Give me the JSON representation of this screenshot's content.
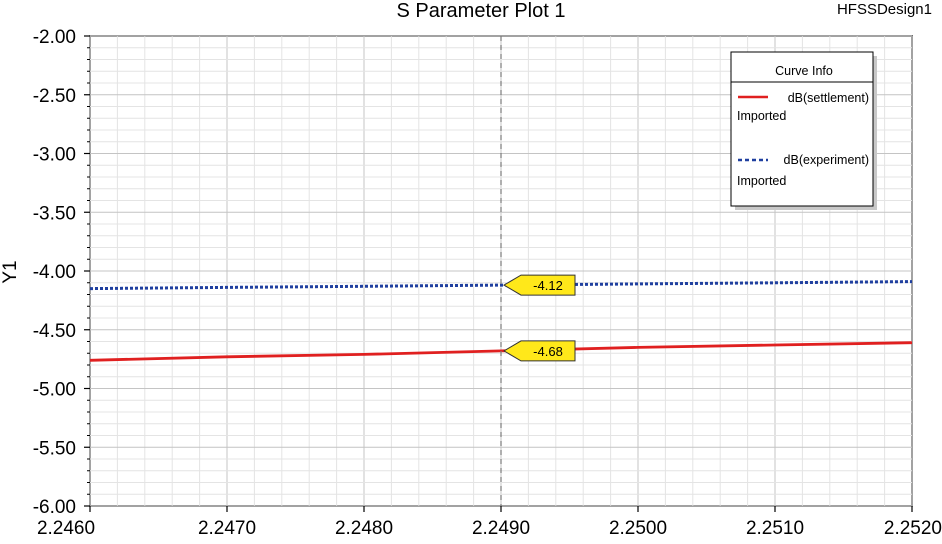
{
  "chart_data": {
    "type": "line",
    "title": "S Parameter Plot 1",
    "design_name": "HFSSDesign1",
    "ylabel": "Y1",
    "xlabel": "",
    "xlim": [
      2.246,
      2.252
    ],
    "ylim": [
      -6.0,
      -2.0
    ],
    "x_ticks": [
      "2.2460",
      "2.2470",
      "2.2480",
      "2.2490",
      "2.2500",
      "2.2510",
      "2.2520"
    ],
    "y_ticks": [
      "-2.00",
      "-2.50",
      "-3.00",
      "-3.50",
      "-4.00",
      "-4.50",
      "-5.00",
      "-5.50",
      "-6.00"
    ],
    "grid": true,
    "legend": {
      "title": "Curve Info",
      "placement": "top-right",
      "entries": [
        {
          "name": "dB(settlement)",
          "sub": "Imported",
          "style": "solid",
          "color": "#e02020"
        },
        {
          "name": "dB(experiment)",
          "sub": "Imported",
          "style": "dotted",
          "color": "#1f3f9f"
        }
      ]
    },
    "series": [
      {
        "name": "dB(settlement)",
        "color": "#e02020",
        "style": "solid",
        "x": [
          2.246,
          2.247,
          2.248,
          2.249,
          2.25,
          2.251,
          2.252
        ],
        "y": [
          -4.76,
          -4.73,
          -4.71,
          -4.68,
          -4.65,
          -4.63,
          -4.61
        ]
      },
      {
        "name": "dB(experiment)",
        "color": "#1f3f9f",
        "style": "dotted",
        "x": [
          2.246,
          2.247,
          2.248,
          2.249,
          2.25,
          2.251,
          2.252
        ],
        "y": [
          -4.15,
          -4.14,
          -4.13,
          -4.12,
          -4.11,
          -4.1,
          -4.09
        ]
      }
    ],
    "marker": {
      "x": 2.249,
      "labels": [
        {
          "value": -4.12,
          "text": "-4.12"
        },
        {
          "value": -4.68,
          "text": "-4.68"
        }
      ],
      "color": "#ffe81a"
    }
  }
}
